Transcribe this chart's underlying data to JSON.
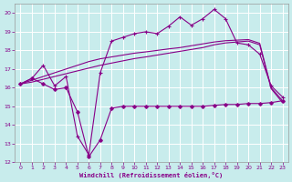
{
  "background_color": "#c8ecec",
  "grid_color": "#ffffff",
  "line_color": "#880088",
  "xlabel": "Windchill (Refroidissement éolien,°C)",
  "xlim_min": -0.5,
  "xlim_max": 23.5,
  "ylim_min": 12,
  "ylim_max": 20.5,
  "yticks": [
    12,
    13,
    14,
    15,
    16,
    17,
    18,
    19,
    20
  ],
  "xticks": [
    0,
    1,
    2,
    3,
    4,
    5,
    6,
    7,
    8,
    9,
    10,
    11,
    12,
    13,
    14,
    15,
    16,
    17,
    18,
    19,
    20,
    21,
    22,
    23
  ],
  "curve_upper_x": [
    0,
    1,
    2,
    3,
    4,
    5,
    6,
    7,
    8,
    9,
    10,
    11,
    12,
    13,
    14,
    15,
    16,
    17,
    18,
    19,
    20,
    21,
    22,
    23
  ],
  "curve_upper_y": [
    16.2,
    16.5,
    17.2,
    16.1,
    16.6,
    13.4,
    12.4,
    16.8,
    18.5,
    18.7,
    18.9,
    19.0,
    18.9,
    19.3,
    19.8,
    19.35,
    19.7,
    20.2,
    19.7,
    18.4,
    18.3,
    17.8,
    16.1,
    15.5
  ],
  "curve_mid1_x": [
    0,
    1,
    2,
    3,
    4,
    5,
    6,
    7,
    8,
    9,
    10,
    11,
    12,
    13,
    14,
    15,
    16,
    17,
    18,
    19,
    20,
    21,
    22,
    23
  ],
  "curve_mid1_y": [
    16.2,
    16.4,
    16.6,
    16.8,
    17.0,
    17.2,
    17.4,
    17.55,
    17.65,
    17.75,
    17.85,
    17.92,
    18.0,
    18.08,
    18.15,
    18.25,
    18.35,
    18.45,
    18.52,
    18.55,
    18.58,
    18.38,
    16.0,
    15.3
  ],
  "curve_mid2_x": [
    0,
    1,
    2,
    3,
    4,
    5,
    6,
    7,
    8,
    9,
    10,
    11,
    12,
    13,
    14,
    15,
    16,
    17,
    18,
    19,
    20,
    21,
    22,
    23
  ],
  "curve_mid2_y": [
    16.2,
    16.3,
    16.45,
    16.6,
    16.75,
    16.9,
    17.05,
    17.2,
    17.32,
    17.44,
    17.56,
    17.65,
    17.75,
    17.85,
    17.95,
    18.05,
    18.15,
    18.3,
    18.4,
    18.45,
    18.5,
    18.3,
    15.95,
    15.2
  ],
  "curve_lower_x": [
    0,
    1,
    2,
    3,
    4,
    5,
    6,
    7,
    8,
    9,
    10,
    11,
    12,
    13,
    14,
    15,
    16,
    17,
    18,
    19,
    20,
    21,
    22,
    23
  ],
  "curve_lower_y": [
    16.2,
    16.5,
    16.2,
    15.9,
    16.0,
    14.7,
    12.3,
    13.2,
    14.9,
    15.0,
    15.0,
    15.0,
    15.0,
    15.0,
    15.0,
    15.0,
    15.0,
    15.05,
    15.1,
    15.1,
    15.15,
    15.15,
    15.2,
    15.3
  ]
}
